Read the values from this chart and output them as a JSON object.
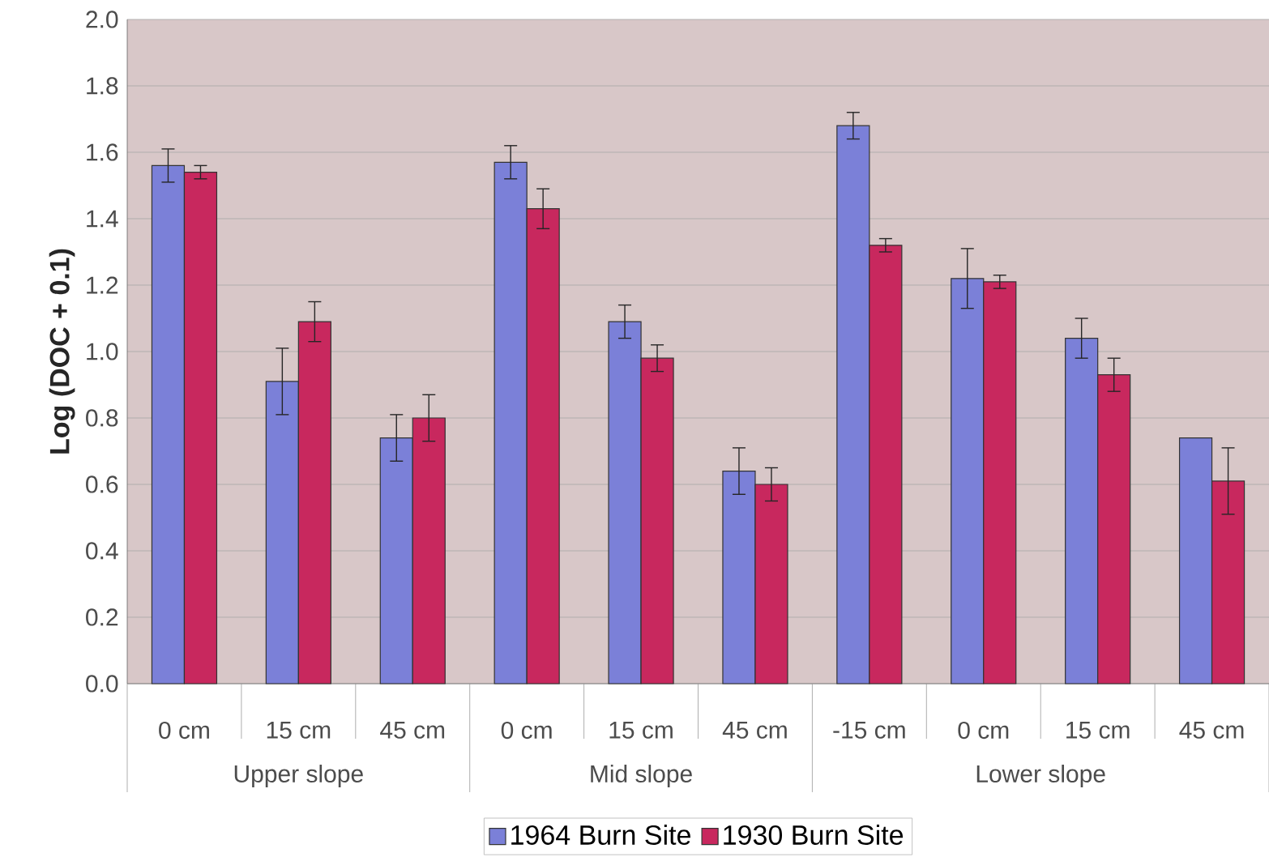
{
  "chart_data": {
    "type": "bar",
    "ylabel": "Log (DOC + 0.1)",
    "categories": [
      "0 cm",
      "15 cm",
      "45 cm",
      "0 cm",
      "15 cm",
      "45 cm",
      "-15 cm",
      "0 cm",
      "15 cm",
      "45 cm"
    ],
    "annotations": [
      "Upper slope",
      "Mid slope",
      "Lower slope"
    ],
    "series": [
      {
        "name": "1964 Burn Site",
        "color": "#7b80d8",
        "values": [
          1.56,
          0.91,
          0.74,
          1.57,
          1.09,
          0.64,
          1.68,
          1.22,
          1.04,
          0.74
        ],
        "errors": [
          0.05,
          0.1,
          0.07,
          0.05,
          0.05,
          0.07,
          0.04,
          0.09,
          0.06,
          null
        ]
      },
      {
        "name": "1930 Burn Site",
        "color": "#c8285e",
        "values": [
          1.54,
          1.09,
          0.8,
          1.43,
          0.98,
          0.6,
          1.32,
          1.21,
          0.93,
          0.61
        ],
        "errors": [
          0.02,
          0.06,
          0.07,
          0.06,
          0.04,
          0.05,
          0.02,
          0.02,
          0.05,
          0.1
        ]
      }
    ],
    "ylim": [
      0,
      2.0
    ],
    "yticks": [
      {
        "value": 0,
        "label": "0.0"
      },
      {
        "value": 0.2,
        "label": "0.2"
      },
      {
        "value": 0.4,
        "label": "0.4"
      },
      {
        "value": 0.6,
        "label": "0.6"
      },
      {
        "value": 0.8,
        "label": "0.8"
      },
      {
        "value": 1.0,
        "label": "1.0"
      },
      {
        "value": 1.2,
        "label": "1.2"
      },
      {
        "value": 1.4,
        "label": "1.4"
      },
      {
        "value": 1.6,
        "label": "1.6"
      },
      {
        "value": 1.8,
        "label": "1.8"
      },
      {
        "value": 2.0,
        "label": "2.0"
      }
    ],
    "grid": "y",
    "legend": "bottom"
  }
}
